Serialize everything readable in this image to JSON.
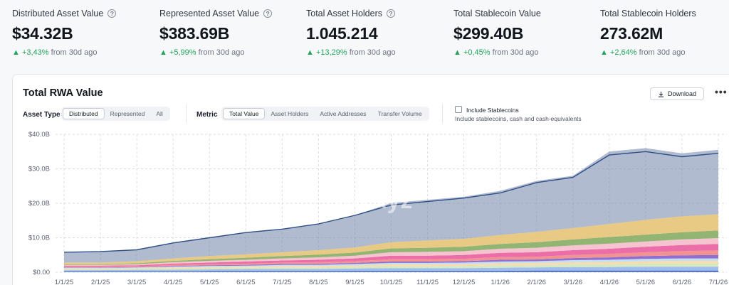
{
  "stats": [
    {
      "label": "Distributed Asset Value",
      "value": "$34.32B",
      "change": "+3,43%",
      "suffix": "from 30d ago",
      "info": true
    },
    {
      "label": "Represented Asset Value",
      "value": "$383.69B",
      "change": "+5,99%",
      "suffix": "from 30d ago",
      "info": true
    },
    {
      "label": "Total Asset Holders",
      "value": "1.045.214",
      "change": "+13,29%",
      "suffix": "from 30d ago",
      "info": true
    },
    {
      "label": "Total Stablecoin Value",
      "value": "$299.40B",
      "change": "+0,45%",
      "suffix": "from 30d ago",
      "info": false
    },
    {
      "label": "Total Stablecoin Holders",
      "value": "273.62M",
      "change": "+2,64%",
      "suffix": "from 30d ago",
      "info": false
    }
  ],
  "card": {
    "title": "Total RWA Value",
    "download_label": "Download",
    "more_label": "•••",
    "asset_type_label": "Asset Type",
    "asset_types": [
      "Distributed",
      "Represented",
      "All"
    ],
    "asset_type_selected": "Distributed",
    "metric_label": "Metric",
    "metrics": [
      "Total Value",
      "Asset Holders",
      "Active Addresses",
      "Transfer Volume"
    ],
    "metric_selected": "Total Value",
    "include_stablecoins_label": "Include Stablecoins",
    "include_stablecoins_checked": false,
    "include_stablecoins_desc": "Include stablecoins, cash and cash-equivalents",
    "watermark": "rwa.xyz"
  },
  "chart_data": {
    "type": "area",
    "stacked": true,
    "x": [
      "1/1/25",
      "2/1/25",
      "3/1/25",
      "4/1/25",
      "5/1/25",
      "6/1/25",
      "7/1/25",
      "8/1/25",
      "9/1/25",
      "10/1/25",
      "11/1/25",
      "12/1/25",
      "1/1/26",
      "2/1/26",
      "3/1/26",
      "4/1/26",
      "5/1/26",
      "6/1/26",
      "7/1/26"
    ],
    "y_ticks": [
      "$0.00",
      "$10.0B",
      "$20.0B",
      "$30.0B",
      "$40.0B"
    ],
    "ylim": [
      0,
      40
    ],
    "y_unit": "B USD",
    "grid": true,
    "total": [
      5.8,
      6.0,
      6.5,
      8.5,
      10.0,
      11.5,
      12.5,
      14.0,
      16.5,
      19.5,
      20.5,
      21.5,
      23.0,
      26.0,
      27.5,
      34.0,
      35.0,
      33.5,
      34.5
    ],
    "series": [
      {
        "color": "#3b5fc0",
        "values": [
          0.2,
          0.2,
          0.2,
          0.2,
          0.3,
          0.3,
          0.3,
          0.3,
          0.4,
          0.4,
          0.4,
          0.4,
          0.4,
          0.5,
          0.5,
          0.5,
          0.5,
          0.5,
          0.5
        ]
      },
      {
        "color": "#8fb3e8",
        "values": [
          0.4,
          0.4,
          0.5,
          0.5,
          0.5,
          0.6,
          0.6,
          0.6,
          0.7,
          0.8,
          0.8,
          0.8,
          0.9,
          0.9,
          1.0,
          1.0,
          1.1,
          1.1,
          1.1
        ]
      },
      {
        "color": "#cfe3b8",
        "values": [
          0.3,
          0.3,
          0.3,
          0.4,
          0.4,
          0.4,
          0.5,
          0.5,
          0.5,
          0.6,
          0.6,
          0.6,
          0.7,
          0.7,
          0.8,
          0.8,
          0.9,
          0.9,
          0.9
        ]
      },
      {
        "color": "#f6d7a0",
        "values": [
          0.2,
          0.2,
          0.2,
          0.3,
          0.3,
          0.3,
          0.4,
          0.4,
          0.4,
          0.5,
          0.5,
          0.5,
          0.6,
          0.6,
          0.6,
          0.7,
          0.7,
          0.8,
          0.8
        ]
      },
      {
        "color": "#b9d9f2",
        "values": [
          0.2,
          0.2,
          0.2,
          0.2,
          0.3,
          0.3,
          0.3,
          0.3,
          0.4,
          0.4,
          0.4,
          0.5,
          0.5,
          0.5,
          0.6,
          0.6,
          0.7,
          0.7,
          0.7
        ]
      },
      {
        "color": "#7a55c8",
        "values": [
          0.1,
          0.1,
          0.1,
          0.2,
          0.2,
          0.2,
          0.3,
          0.3,
          0.3,
          0.4,
          0.4,
          0.4,
          0.5,
          0.5,
          0.6,
          0.7,
          0.8,
          0.9,
          1.0
        ]
      },
      {
        "color": "#f08080",
        "values": [
          0.2,
          0.2,
          0.2,
          0.3,
          0.3,
          0.4,
          0.4,
          0.5,
          0.5,
          0.7,
          0.7,
          0.7,
          0.8,
          0.8,
          0.9,
          1.0,
          1.1,
          1.2,
          1.3
        ]
      },
      {
        "color": "#e7559a",
        "values": [
          0.3,
          0.3,
          0.3,
          0.4,
          0.5,
          0.6,
          0.6,
          0.7,
          0.8,
          1.0,
          1.0,
          1.1,
          1.2,
          1.3,
          1.4,
          1.5,
          1.6,
          1.8,
          1.9
        ]
      },
      {
        "color": "#f4b8c8",
        "values": [
          0.2,
          0.2,
          0.3,
          0.4,
          0.5,
          0.5,
          0.6,
          0.7,
          0.8,
          1.0,
          1.1,
          1.1,
          1.2,
          1.3,
          1.4,
          1.5,
          1.5,
          1.6,
          1.7
        ]
      },
      {
        "color": "#7fa85a",
        "values": [
          0.2,
          0.2,
          0.3,
          0.4,
          0.5,
          0.6,
          0.7,
          0.8,
          0.9,
          1.1,
          1.2,
          1.3,
          1.4,
          1.6,
          1.7,
          1.9,
          2.0,
          2.1,
          2.2
        ]
      },
      {
        "color": "#e5c170",
        "values": [
          0.5,
          0.5,
          0.6,
          0.7,
          0.9,
          1.0,
          1.1,
          1.3,
          1.5,
          1.8,
          2.1,
          2.3,
          2.6,
          3.0,
          3.3,
          3.8,
          4.3,
          4.6,
          4.7
        ]
      },
      {
        "color": "#6f84a8",
        "values": [
          3.0,
          3.2,
          3.3,
          4.5,
          5.3,
          6.3,
          6.7,
          7.6,
          9.3,
          11.4,
          11.8,
          12.2,
          12.8,
          14.8,
          15.2,
          21.0,
          20.8,
          18.3,
          18.7
        ]
      }
    ]
  }
}
